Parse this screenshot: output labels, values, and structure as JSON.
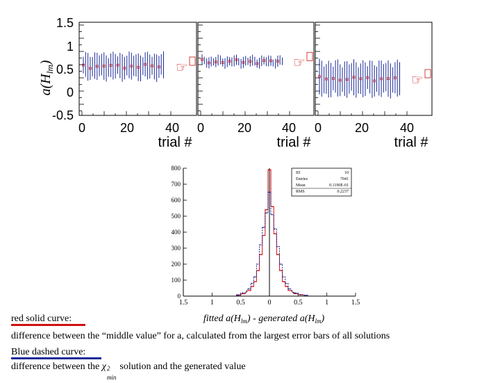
{
  "top_panels": {
    "y_axis_label": "a(H_lm)",
    "y_axis_label_main": "a(H",
    "y_axis_label_sub": "lm",
    "y_axis_label_close": ")",
    "y_ticks": [
      "1.5",
      "1",
      "0.5",
      "0",
      "-0.5"
    ],
    "x_ticks": [
      "0",
      "20",
      "40"
    ],
    "x_label": "trial #",
    "panels": [
      {
        "name": "panel-1",
        "center": 0.55,
        "spread": 0.3
      },
      {
        "name": "panel-2",
        "center": 0.65,
        "spread": 0.12
      },
      {
        "name": "panel-3",
        "center": 0.28,
        "spread": 0.4
      }
    ]
  },
  "chart_data": {
    "type": "histogram",
    "x_ticks": [
      "1.5",
      "1",
      "0.5",
      "0",
      "0.5",
      "1",
      "1.5"
    ],
    "y_ticks": [
      "0",
      "100",
      "200",
      "300",
      "400",
      "500",
      "600",
      "700",
      "800"
    ],
    "ylim": [
      0,
      800
    ],
    "xlim": [
      -1.5,
      1.5
    ],
    "xlabel": "fitted a(H_lm) - generated a(H_lm)",
    "xlabel_parts": [
      "fitted a(H",
      "lm",
      ") - generated a(H",
      "lm",
      ")"
    ],
    "bin_centers": [
      -0.55,
      -0.45,
      -0.35,
      -0.3,
      -0.25,
      -0.2,
      -0.15,
      -0.1,
      -0.05,
      0.0,
      0.05,
      0.1,
      0.15,
      0.2,
      0.25,
      0.3,
      0.35,
      0.45,
      0.55,
      0.65
    ],
    "series": [
      {
        "name": "red solid curve",
        "color": "#d01010",
        "values": [
          5,
          15,
          35,
          60,
          90,
          160,
          260,
          380,
          540,
          790,
          560,
          390,
          260,
          160,
          90,
          60,
          35,
          15,
          8,
          4
        ]
      },
      {
        "name": "Blue dashed curve",
        "color": "#1a2a9a",
        "values": [
          8,
          20,
          45,
          80,
          120,
          200,
          320,
          430,
          520,
          650,
          510,
          420,
          310,
          200,
          120,
          80,
          45,
          20,
          10,
          5
        ]
      }
    ],
    "stats_box": {
      "rows": [
        {
          "label": "ID",
          "value": "10"
        },
        {
          "label": "Entries",
          "value": "7041"
        },
        {
          "label": "Mean",
          "value": "0.1190E-01"
        },
        {
          "label": "RMS",
          "value": "0.2237"
        }
      ]
    }
  },
  "caption": {
    "red_head": "red solid curve:",
    "red_text": "difference between the “middle value” for a, calculated from the largest error bars of all solutions",
    "blue_head": "Blue dashed curve:",
    "blue_text_pre": "difference between the ",
    "blue_chi": "χ",
    "blue_sup": "2",
    "blue_sub": "min",
    "blue_text_post": " solution and the generated value"
  },
  "colors": {
    "red": "#d01010",
    "blue": "#1a2a9a",
    "axis": "#000000"
  }
}
